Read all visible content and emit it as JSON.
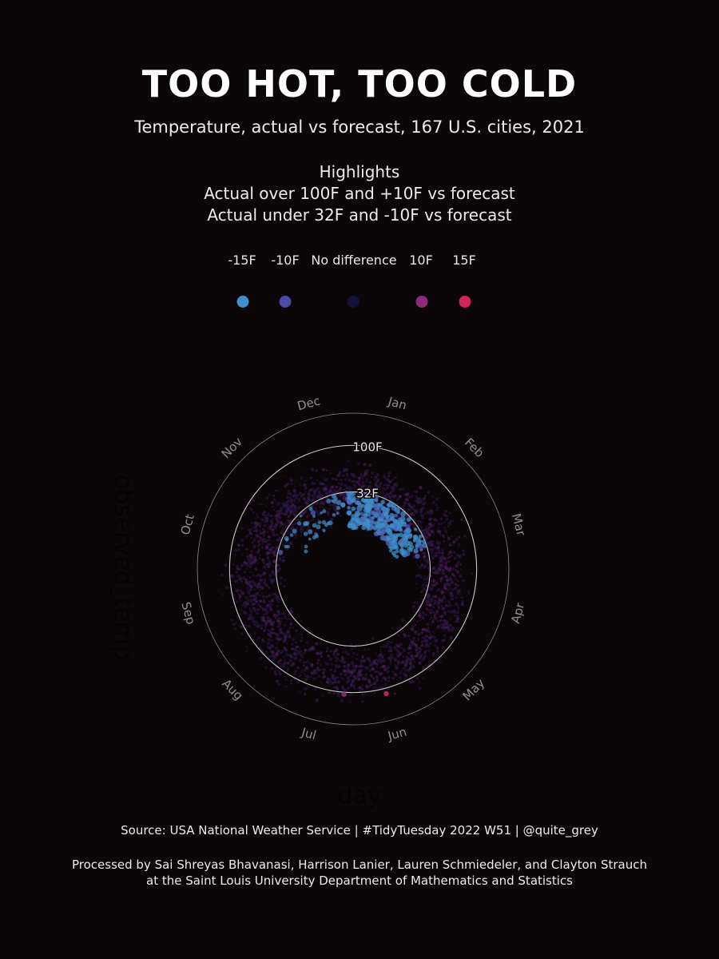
{
  "chart_data": {
    "type": "scatter",
    "projection": "polar",
    "title": "TOO HOT, TOO COLD",
    "subtitle": "Temperature, actual vs forecast, 167 U.S. cities, 2021",
    "highlights": {
      "heading": "Highlights",
      "lines": [
        "Actual over 100F and +10F vs forecast",
        "Actual under 32F and -10F vs forecast"
      ]
    },
    "legend": {
      "placement": "top",
      "items": [
        {
          "label": "-15F",
          "color": "#3f8fc9"
        },
        {
          "label": "-10F",
          "color": "#4b4ba8"
        },
        {
          "label": "No difference",
          "color": "#15123a"
        },
        {
          "label": "10F",
          "color": "#8e2a7c"
        },
        {
          "label": "15F",
          "color": "#d42358"
        }
      ]
    },
    "xlabel": "day",
    "ylabel": "observed_temp",
    "month_labels": [
      "Jan",
      "Feb",
      "Mar",
      "Apr",
      "May",
      "Jun",
      "Jul",
      "Aug",
      "Sep",
      "Oct",
      "Nov",
      "Dec"
    ],
    "radial_labels": [
      "32F",
      "100F"
    ],
    "reference_circles": [
      32,
      100
    ],
    "rlim": [
      -40,
      125
    ],
    "highlight_points": [
      {
        "month": "Jan",
        "observed_temp": 10,
        "diff": -12
      },
      {
        "month": "Jan",
        "observed_temp": 18,
        "diff": -14
      },
      {
        "month": "Jan",
        "observed_temp": 25,
        "diff": -11
      },
      {
        "month": "Jan",
        "observed_temp": 5,
        "diff": -15
      },
      {
        "month": "Feb",
        "observed_temp": -5,
        "diff": -15
      },
      {
        "month": "Feb",
        "observed_temp": 4,
        "diff": -14
      },
      {
        "month": "Feb",
        "observed_temp": 12,
        "diff": -13
      },
      {
        "month": "Feb",
        "observed_temp": 20,
        "diff": -12
      },
      {
        "month": "Feb",
        "observed_temp": 26,
        "diff": -11
      },
      {
        "month": "Feb",
        "observed_temp": -12,
        "diff": -15
      },
      {
        "month": "Mar",
        "observed_temp": 15,
        "diff": -12
      },
      {
        "month": "Mar",
        "observed_temp": 24,
        "diff": -11
      },
      {
        "month": "Dec",
        "observed_temp": 22,
        "diff": -12
      },
      {
        "month": "Dec",
        "observed_temp": 14,
        "diff": -13
      },
      {
        "month": "Nov",
        "observed_temp": 20,
        "diff": -11
      },
      {
        "month": "Oct",
        "observed_temp": 28,
        "diff": -10
      },
      {
        "month": "Jun",
        "observed_temp": 108,
        "diff": 14
      },
      {
        "month": "Jul",
        "observed_temp": 103,
        "diff": 11
      }
    ]
  },
  "footer": {
    "source": "Source: USA National Weather Service  |  #TidyTuesday 2022 W51  |  @quite_grey",
    "credit_line1": "Processed by Sai Shreyas Bhavanasi, Harrison Lanier, Lauren Schmiedeler, and Clayton Strauch",
    "credit_line2": "at the Saint Louis University Department of Mathematics and Statistics"
  }
}
